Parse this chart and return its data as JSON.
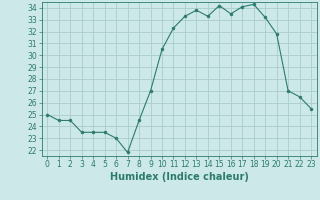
{
  "x": [
    0,
    1,
    2,
    3,
    4,
    5,
    6,
    7,
    8,
    9,
    10,
    11,
    12,
    13,
    14,
    15,
    16,
    17,
    18,
    19,
    20,
    21,
    22,
    23
  ],
  "y": [
    25.0,
    24.5,
    24.5,
    23.5,
    23.5,
    23.5,
    23.0,
    21.8,
    24.5,
    27.0,
    30.5,
    32.3,
    33.3,
    33.8,
    33.3,
    34.2,
    33.5,
    34.1,
    34.3,
    33.2,
    31.8,
    27.0,
    26.5,
    25.5
  ],
  "bg_color": "#cce8e8",
  "line_color": "#2d7b6e",
  "marker_color": "#2d7b6e",
  "grid_color": "#aacccc",
  "xlabel": "Humidex (Indice chaleur)",
  "ylim": [
    21.5,
    34.5
  ],
  "xlim": [
    -0.5,
    23.5
  ],
  "yticks": [
    22,
    23,
    24,
    25,
    26,
    27,
    28,
    29,
    30,
    31,
    32,
    33,
    34
  ],
  "xticks": [
    0,
    1,
    2,
    3,
    4,
    5,
    6,
    7,
    8,
    9,
    10,
    11,
    12,
    13,
    14,
    15,
    16,
    17,
    18,
    19,
    20,
    21,
    22,
    23
  ],
  "tick_label_fontsize": 5.5,
  "xlabel_fontsize": 7
}
